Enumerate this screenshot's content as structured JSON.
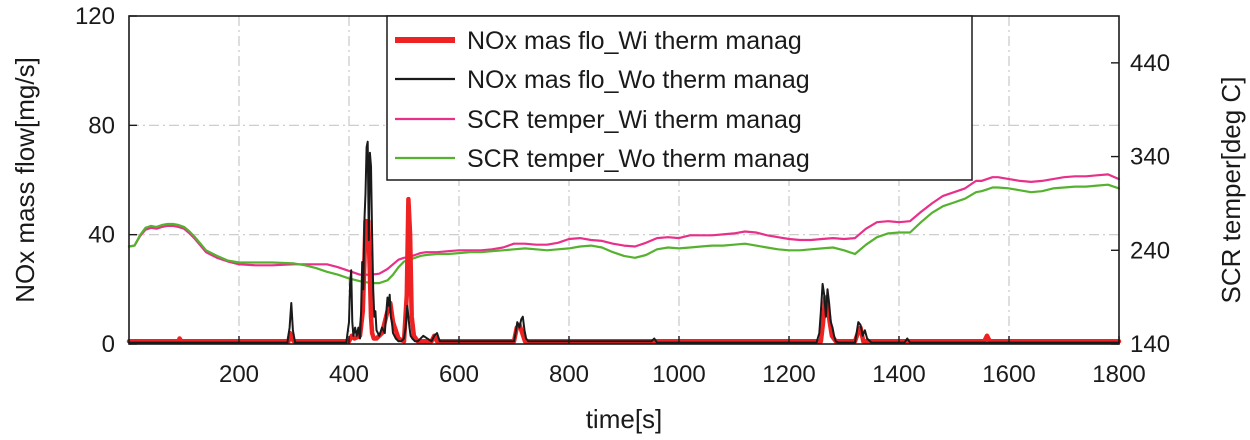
{
  "chart_data": {
    "type": "line",
    "xlabel": "time[s]",
    "ylabel_left": "NOx mass flow[mg/s]",
    "ylabel_right": "SCR temper[deg C]",
    "xlim": [
      0,
      1800
    ],
    "ylim_left": [
      0,
      120
    ],
    "ylim_right": [
      140,
      490
    ],
    "x_ticks": [
      200,
      400,
      600,
      800,
      1000,
      1200,
      1400,
      1600,
      1800
    ],
    "x_tick_labels": [
      "200",
      "400",
      "600",
      "800",
      "1000",
      "1200",
      "1400",
      "1600",
      "1800"
    ],
    "y_left_ticks": [
      0,
      40,
      80,
      120
    ],
    "y_left_tick_labels": [
      "0",
      "40",
      "80",
      "120"
    ],
    "y_right_ticks": [
      140,
      240,
      340,
      440
    ],
    "y_right_tick_labels": [
      "140",
      "240",
      "340",
      "440"
    ],
    "grid": true,
    "legend_position": "top-center",
    "series": [
      {
        "name": "NOx mas flo_Wi therm manag",
        "axis": "left",
        "color": "#ee2222",
        "x": [
          0,
          90,
          92,
          95,
          290,
          293,
          296,
          300,
          400,
          405,
          410,
          420,
          425,
          428,
          430,
          432,
          435,
          438,
          440,
          442,
          445,
          450,
          460,
          470,
          475,
          480,
          490,
          500,
          505,
          508,
          511,
          514,
          518,
          525,
          550,
          555,
          560,
          700,
          705,
          710,
          715,
          720,
          1258,
          1262,
          1266,
          1270,
          1274,
          1278,
          1285,
          1320,
          1325,
          1330,
          1335,
          1555,
          1560,
          1565,
          1800
        ],
        "y": [
          1.0,
          1.0,
          2.0,
          1.0,
          1.0,
          4.0,
          2.0,
          1.0,
          1.0,
          3.0,
          2.0,
          3.0,
          12.0,
          30.0,
          45.0,
          40.0,
          45.0,
          25.0,
          10.0,
          4.0,
          2.0,
          2.0,
          4.0,
          12.0,
          15.0,
          8.0,
          2.0,
          1.0,
          18.0,
          53.0,
          40.0,
          10.0,
          3.0,
          1.0,
          1.0,
          3.0,
          1.0,
          1.0,
          6.0,
          7.0,
          4.0,
          1.0,
          1.0,
          8.0,
          17.0,
          14.0,
          8.0,
          3.0,
          1.0,
          1.0,
          4.0,
          6.0,
          1.0,
          1.0,
          3.0,
          1.0,
          1.0
        ]
      },
      {
        "name": "NOx mas flo_Wo therm manag",
        "axis": "left",
        "color": "#1a1a1a",
        "x": [
          0,
          288,
          292,
          295,
          298,
          302,
          395,
          398,
          400,
          402,
          404,
          406,
          408,
          411,
          414,
          417,
          420,
          422,
          424,
          426,
          428,
          430,
          432,
          434,
          436,
          438,
          440,
          442,
          444,
          446,
          448,
          450,
          455,
          460,
          465,
          468,
          470,
          472,
          474,
          476,
          478,
          480,
          485,
          490,
          495,
          500,
          503,
          506,
          508,
          510,
          512,
          515,
          520,
          525,
          535,
          550,
          555,
          560,
          565,
          700,
          703,
          706,
          710,
          713,
          716,
          719,
          722,
          726,
          950,
          955,
          960,
          1250,
          1255,
          1258,
          1261,
          1264,
          1267,
          1270,
          1273,
          1276,
          1279,
          1282,
          1285,
          1290,
          1320,
          1323,
          1326,
          1330,
          1334,
          1338,
          1342,
          1350,
          1410,
          1415,
          1420,
          1800
        ],
        "y": [
          0.5,
          0.5,
          6.0,
          15.0,
          5.0,
          0.5,
          0.5,
          5.0,
          8.0,
          22.0,
          27.0,
          8.0,
          3.0,
          6.0,
          3.0,
          6.0,
          2.0,
          12.0,
          30.0,
          20.0,
          45.0,
          55.0,
          72.0,
          74.0,
          38.0,
          70.0,
          65.0,
          40.0,
          20.0,
          10.0,
          12.0,
          5.0,
          3.0,
          6.0,
          4.0,
          12.0,
          17.0,
          14.0,
          18.0,
          10.0,
          8.0,
          4.0,
          2.0,
          1.0,
          1.0,
          2.0,
          6.0,
          14.0,
          10.0,
          6.0,
          3.0,
          2.0,
          1.0,
          1.0,
          3.0,
          1.0,
          3.0,
          4.0,
          1.0,
          1.0,
          4.0,
          8.0,
          6.0,
          9.0,
          10.0,
          5.0,
          2.0,
          1.0,
          1.0,
          2.0,
          0.5,
          0.5,
          4.0,
          12.0,
          22.0,
          18.0,
          10.0,
          20.0,
          15.0,
          8.0,
          6.0,
          3.0,
          1.0,
          0.5,
          0.5,
          4.0,
          8.0,
          7.0,
          3.0,
          5.0,
          2.0,
          0.5,
          0.5,
          2.0,
          0.5,
          0.5
        ]
      },
      {
        "name": "SCR temper_Wi therm manag",
        "axis": "right",
        "color": "#e8308a",
        "x": [
          0,
          10,
          20,
          30,
          40,
          50,
          60,
          70,
          80,
          90,
          100,
          110,
          120,
          130,
          140,
          160,
          180,
          200,
          230,
          260,
          300,
          320,
          340,
          360,
          380,
          400,
          420,
          440,
          455,
          470,
          480,
          490,
          500,
          510,
          520,
          530,
          540,
          560,
          580,
          600,
          620,
          640,
          660,
          680,
          700,
          720,
          740,
          760,
          780,
          800,
          820,
          840,
          860,
          880,
          900,
          920,
          940,
          960,
          980,
          1000,
          1020,
          1040,
          1060,
          1080,
          1100,
          1120,
          1140,
          1160,
          1180,
          1200,
          1220,
          1240,
          1260,
          1280,
          1300,
          1320,
          1340,
          1360,
          1380,
          1400,
          1420,
          1440,
          1460,
          1480,
          1500,
          1510,
          1520,
          1540,
          1550,
          1560,
          1570,
          1580,
          1600,
          1620,
          1640,
          1660,
          1680,
          1700,
          1720,
          1740,
          1760,
          1780,
          1800
        ],
        "y": [
          244,
          245,
          255,
          262,
          264,
          263,
          265,
          266,
          266,
          265,
          263,
          258,
          252,
          245,
          238,
          232,
          228,
          225,
          224,
          224,
          225,
          225,
          225,
          225,
          222,
          218,
          214,
          214,
          215,
          220,
          225,
          230,
          232,
          233,
          235,
          237,
          238,
          238,
          239,
          240,
          240,
          240,
          241,
          243,
          247,
          247,
          246,
          246,
          248,
          252,
          253,
          251,
          250,
          247,
          245,
          244,
          248,
          253,
          254,
          253,
          256,
          256,
          256,
          257,
          258,
          260,
          259,
          256,
          254,
          252,
          251,
          251,
          252,
          253,
          252,
          253,
          263,
          270,
          271,
          270,
          271,
          281,
          290,
          298,
          302,
          304,
          306,
          314,
          314,
          316,
          318,
          318,
          316,
          314,
          313,
          314,
          316,
          318,
          319,
          319,
          320,
          321,
          316
        ]
      },
      {
        "name": "SCR temper_Wo therm manag",
        "axis": "right",
        "color": "#55b22e",
        "x": [
          0,
          10,
          20,
          30,
          40,
          50,
          60,
          70,
          80,
          90,
          100,
          110,
          120,
          130,
          140,
          160,
          180,
          200,
          230,
          260,
          300,
          320,
          340,
          360,
          380,
          400,
          420,
          440,
          455,
          470,
          480,
          490,
          500,
          510,
          520,
          530,
          540,
          560,
          580,
          600,
          620,
          640,
          660,
          680,
          700,
          720,
          740,
          760,
          780,
          800,
          820,
          840,
          860,
          880,
          900,
          920,
          940,
          960,
          980,
          1000,
          1020,
          1040,
          1060,
          1080,
          1100,
          1120,
          1140,
          1160,
          1180,
          1200,
          1220,
          1240,
          1260,
          1280,
          1300,
          1320,
          1340,
          1360,
          1380,
          1400,
          1420,
          1440,
          1460,
          1480,
          1500,
          1510,
          1520,
          1540,
          1550,
          1560,
          1570,
          1580,
          1600,
          1620,
          1640,
          1660,
          1680,
          1700,
          1720,
          1740,
          1760,
          1780,
          1800
        ],
        "y": [
          244,
          245,
          256,
          264,
          266,
          265,
          267,
          268,
          268,
          267,
          265,
          260,
          254,
          247,
          240,
          234,
          229,
          227,
          227,
          227,
          226,
          224,
          221,
          217,
          214,
          210,
          207,
          205,
          205,
          208,
          214,
          222,
          228,
          230,
          232,
          234,
          235,
          236,
          236,
          237,
          238,
          238,
          239,
          240,
          241,
          242,
          241,
          240,
          241,
          242,
          244,
          245,
          243,
          238,
          234,
          232,
          235,
          241,
          243,
          242,
          243,
          244,
          245,
          245,
          246,
          247,
          245,
          243,
          241,
          240,
          240,
          241,
          242,
          243,
          240,
          236,
          246,
          254,
          258,
          259,
          259,
          270,
          280,
          287,
          291,
          293,
          295,
          302,
          303,
          305,
          307,
          307,
          306,
          304,
          302,
          303,
          306,
          307,
          308,
          308,
          309,
          310,
          306
        ]
      }
    ]
  }
}
